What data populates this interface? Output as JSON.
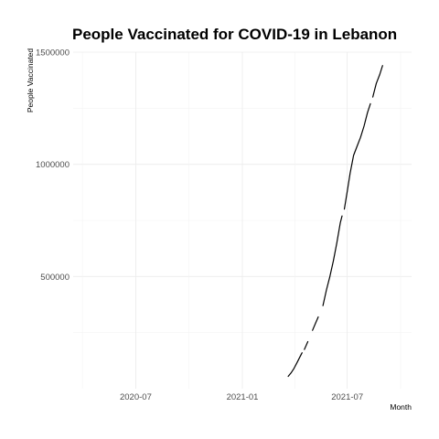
{
  "chart_data": {
    "type": "line",
    "title": "People Vaccinated for COVID-19 in Lebanon",
    "xlabel": "Month",
    "ylabel": "People Vaccinated",
    "x_ticks": [
      "2020-07",
      "2021-01",
      "2021-07"
    ],
    "y_ticks": [
      500000,
      1000000,
      1500000
    ],
    "xlim": [
      "2020-03-15",
      "2021-10-20"
    ],
    "ylim": [
      0,
      1500000
    ],
    "grid": true,
    "legend": "none",
    "series": [
      {
        "color": "#000000",
        "segments": [
          [
            [
              "2021-03-21",
              55000
            ],
            [
              "2021-03-26",
              70000
            ],
            [
              "2021-03-31",
              90000
            ],
            [
              "2021-04-05",
              115000
            ],
            [
              "2021-04-10",
              140000
            ],
            [
              "2021-04-14",
              160000
            ]
          ],
          [
            [
              "2021-04-18",
              175000
            ],
            [
              "2021-04-24",
              210000
            ]
          ],
          [
            [
              "2021-05-02",
              260000
            ],
            [
              "2021-05-07",
              290000
            ],
            [
              "2021-05-12",
              320000
            ]
          ],
          [
            [
              "2021-05-20",
              370000
            ],
            [
              "2021-05-26",
              440000
            ],
            [
              "2021-06-01",
              500000
            ],
            [
              "2021-06-07",
              570000
            ],
            [
              "2021-06-13",
              650000
            ],
            [
              "2021-06-19",
              740000
            ],
            [
              "2021-06-22",
              770000
            ]
          ],
          [
            [
              "2021-06-26",
              800000
            ],
            [
              "2021-07-01",
              880000
            ],
            [
              "2021-07-06",
              960000
            ],
            [
              "2021-07-12",
              1040000
            ],
            [
              "2021-07-18",
              1080000
            ],
            [
              "2021-07-24",
              1120000
            ],
            [
              "2021-07-30",
              1170000
            ],
            [
              "2021-08-05",
              1230000
            ],
            [
              "2021-08-10",
              1270000
            ]
          ],
          [
            [
              "2021-08-14",
              1300000
            ],
            [
              "2021-08-20",
              1360000
            ],
            [
              "2021-08-26",
              1400000
            ],
            [
              "2021-08-31",
              1440000
            ]
          ]
        ]
      }
    ]
  }
}
